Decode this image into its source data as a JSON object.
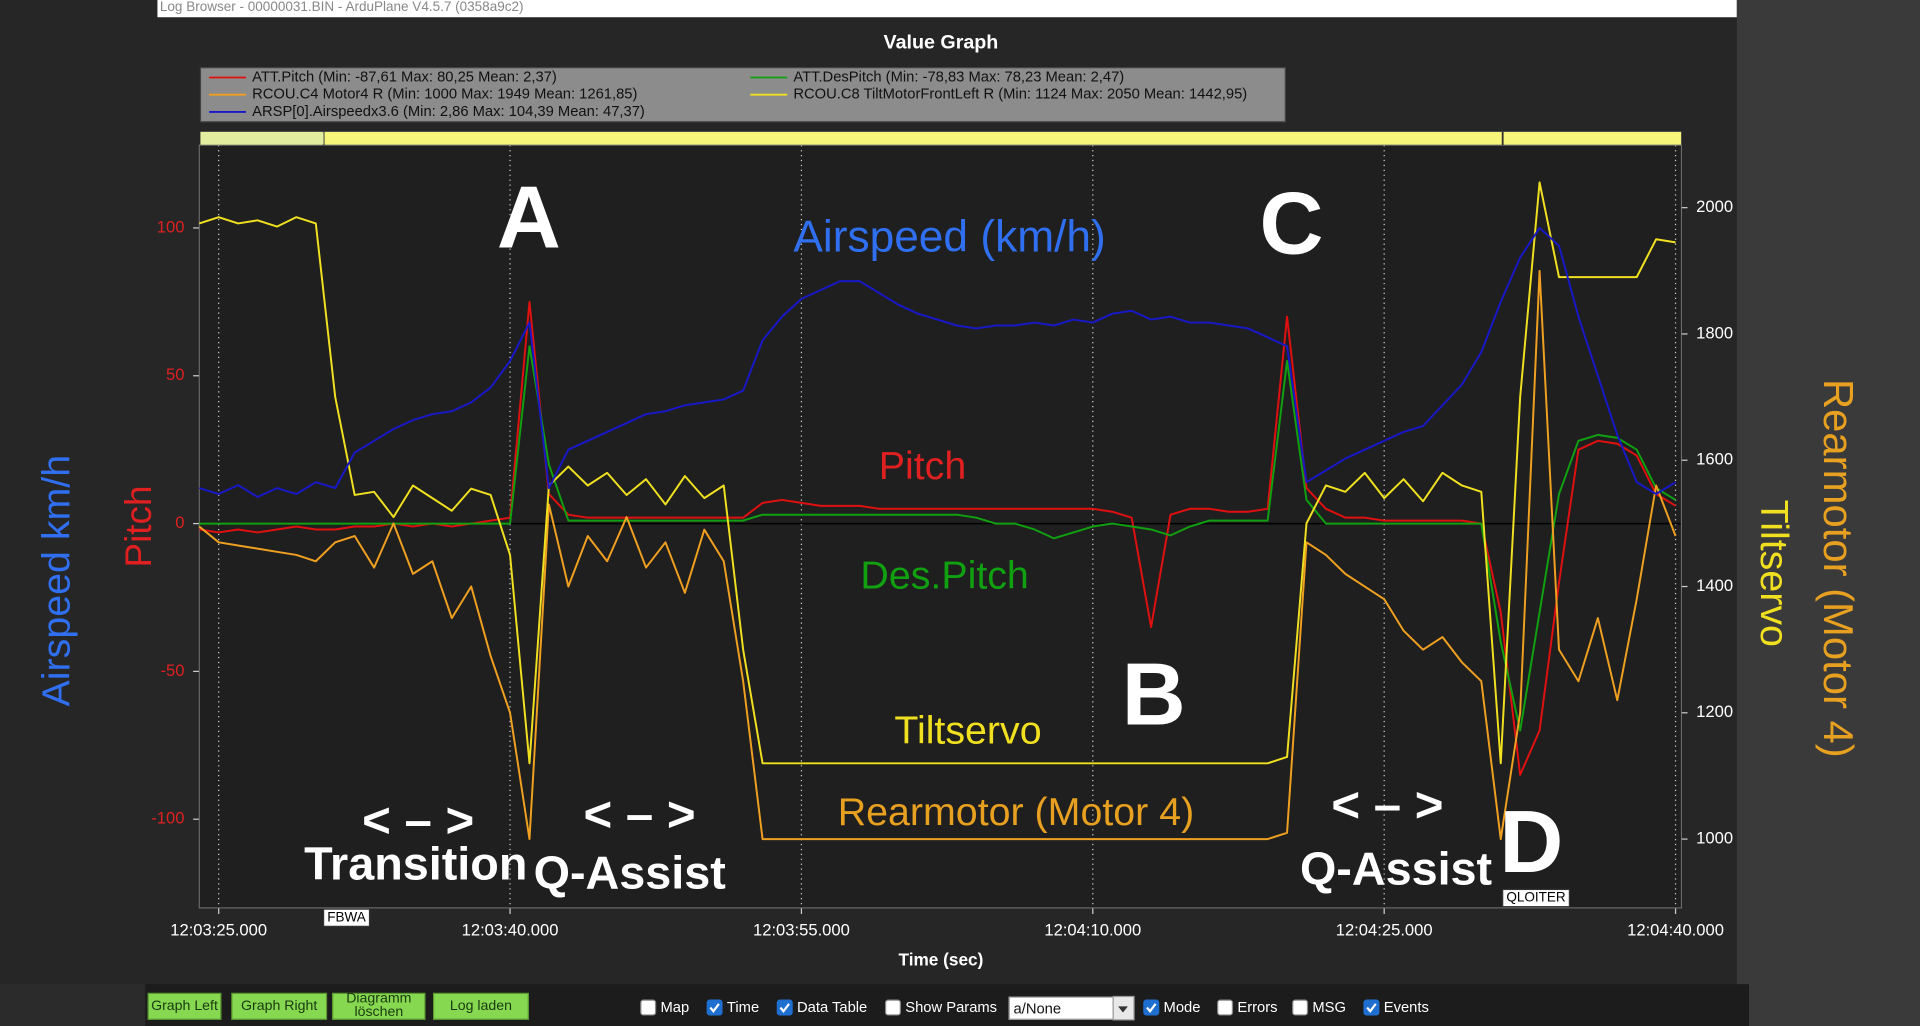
{
  "window": {
    "title": "Log Browser - 00000031.BIN - ArduPlane V4.5.7 (0358a9c2)"
  },
  "chart_data": {
    "type": "line",
    "title": "Value Graph",
    "xlabel": "Time (sec)",
    "ylabel": [
      "Airspeed km/h",
      "Pitch"
    ],
    "y2label": [
      "Rearmotor (Motor 4)",
      "Tiltservo"
    ],
    "grid": "x",
    "xlim": [
      43404,
      43480.3
    ],
    "xticks": [
      {
        "value": 43405,
        "label": "12:03:25.000"
      },
      {
        "value": 43420,
        "label": "12:03:40.000"
      },
      {
        "value": 43435,
        "label": "12:03:55.000"
      },
      {
        "value": 43450,
        "label": "12:04:10.000"
      },
      {
        "value": 43465,
        "label": "12:04:25.000"
      },
      {
        "value": 43480,
        "label": "12:04:40.000"
      }
    ],
    "ylim": [
      -130,
      128
    ],
    "yticks": [
      -100,
      -50,
      0,
      50,
      100
    ],
    "y2lim": [
      891,
      2099
    ],
    "y2ticks": [
      1000,
      1200,
      1400,
      1600,
      1800,
      2000
    ],
    "modes": [
      {
        "label": "FBWA",
        "x": 43410.4
      },
      {
        "label": "QLOITER",
        "x": 43471.1
      }
    ],
    "x": [
      43404,
      43405,
      43406,
      43407,
      43408,
      43409,
      43410,
      43411,
      43412,
      43413,
      43414,
      43415,
      43416,
      43417,
      43418,
      43419,
      43420,
      43421,
      43422,
      43423,
      43424,
      43425,
      43426,
      43427,
      43428,
      43429,
      43430,
      43431,
      43432,
      43433,
      43434,
      43435,
      43436,
      43437,
      43438,
      43439,
      43440,
      43441,
      43442,
      43443,
      43444,
      43445,
      43446,
      43447,
      43448,
      43449,
      43450,
      43451,
      43452,
      43453,
      43454,
      43455,
      43456,
      43457,
      43458,
      43459,
      43460,
      43461,
      43462,
      43463,
      43464,
      43465,
      43466,
      43467,
      43468,
      43469,
      43470,
      43471,
      43472,
      43473,
      43474,
      43475,
      43476,
      43477,
      43478,
      43479,
      43480
    ],
    "series": [
      {
        "name": "ATT.Pitch  (Min: -87,61 Max: 80,25 Mean: 2,37)",
        "color": "#e01010",
        "axis": "y",
        "values": [
          -2,
          -3,
          -2,
          -3,
          -2,
          -1,
          -2,
          -2,
          -1,
          -1,
          0,
          -1,
          0,
          -1,
          0,
          1,
          2,
          75,
          10,
          3,
          2,
          2,
          2,
          2,
          2,
          2,
          2,
          2,
          2,
          7,
          8,
          7,
          6,
          6,
          6,
          5,
          5,
          5,
          5,
          5,
          5,
          5,
          5,
          5,
          5,
          5,
          5,
          4,
          2,
          -35,
          3,
          5,
          5,
          4,
          4,
          5,
          70,
          12,
          5,
          2,
          2,
          1,
          1,
          1,
          1,
          1,
          0,
          -30,
          -85,
          -70,
          -20,
          25,
          28,
          27,
          23,
          10,
          6
        ]
      },
      {
        "name": "ATT.DesPitch  (Min: -78,83 Max: 78,23 Mean: 2,47)",
        "color": "#10a010",
        "axis": "y",
        "values": [
          0,
          0,
          0,
          0,
          0,
          0,
          0,
          0,
          0,
          0,
          0,
          0,
          0,
          0,
          0,
          0,
          0,
          60,
          20,
          1,
          1,
          1,
          1,
          1,
          1,
          1,
          1,
          1,
          1,
          3,
          3,
          3,
          3,
          3,
          3,
          3,
          3,
          3,
          3,
          3,
          2,
          0,
          0,
          -2,
          -5,
          -3,
          -1,
          0,
          -1,
          -2,
          -4,
          -1,
          1,
          1,
          1,
          1,
          55,
          8,
          0,
          0,
          0,
          0,
          0,
          0,
          0,
          0,
          0,
          -40,
          -70,
          -30,
          10,
          28,
          30,
          29,
          25,
          12,
          8
        ]
      },
      {
        "name": "RCOU.C4 Motor4 R (Min: 1000 Max: 1949 Mean: 1261,85)",
        "color": "#f0a020",
        "axis": "y2",
        "values": [
          1495,
          1470,
          1465,
          1460,
          1455,
          1450,
          1440,
          1470,
          1480,
          1430,
          1500,
          1420,
          1440,
          1350,
          1400,
          1290,
          1200,
          1000,
          1530,
          1400,
          1480,
          1440,
          1510,
          1430,
          1470,
          1390,
          1490,
          1440,
          1250,
          1000,
          1000,
          1000,
          1000,
          1000,
          1000,
          1000,
          1000,
          1000,
          1000,
          1000,
          1000,
          1000,
          1000,
          1000,
          1000,
          1000,
          1000,
          1000,
          1000,
          1000,
          1000,
          1000,
          1000,
          1000,
          1000,
          1000,
          1010,
          1470,
          1450,
          1420,
          1400,
          1380,
          1330,
          1300,
          1320,
          1280,
          1250,
          1000,
          1200,
          1900,
          1300,
          1250,
          1350,
          1220,
          1380,
          1560,
          1480
        ]
      },
      {
        "name": "RCOU.C8 TiltMotorFrontLeft R (Min: 1124 Max: 2050 Mean: 1442,95)",
        "color": "#f0e020",
        "axis": "y2",
        "values": [
          1975,
          1985,
          1975,
          1980,
          1970,
          1985,
          1975,
          1700,
          1545,
          1550,
          1510,
          1560,
          1540,
          1520,
          1555,
          1545,
          1450,
          1120,
          1560,
          1590,
          1560,
          1580,
          1545,
          1570,
          1530,
          1575,
          1540,
          1560,
          1300,
          1120,
          1120,
          1120,
          1120,
          1120,
          1120,
          1120,
          1120,
          1120,
          1120,
          1120,
          1120,
          1120,
          1120,
          1120,
          1120,
          1120,
          1120,
          1120,
          1120,
          1120,
          1120,
          1120,
          1120,
          1120,
          1120,
          1120,
          1130,
          1500,
          1560,
          1550,
          1580,
          1540,
          1570,
          1535,
          1580,
          1560,
          1550,
          1120,
          1700,
          2040,
          1890,
          1890,
          1890,
          1890,
          1890,
          1950,
          1945
        ]
      },
      {
        "name": "ARSP[0].Airspeedx3.6  (Min: 2,86 Max: 104,39 Mean: 47,37)",
        "color": "#1818c8",
        "axis": "y",
        "values": [
          12,
          10,
          13,
          9,
          12,
          10,
          14,
          12,
          24,
          28,
          32,
          35,
          37,
          38,
          41,
          46,
          55,
          68,
          12,
          25,
          28,
          31,
          34,
          37,
          38,
          40,
          41,
          42,
          45,
          62,
          70,
          76,
          79,
          82,
          82,
          78,
          74,
          71,
          69,
          67,
          66,
          67,
          67,
          68,
          67,
          69,
          68,
          71,
          72,
          69,
          70,
          68,
          68,
          67,
          66,
          63,
          60,
          14,
          18,
          22,
          25,
          28,
          31,
          33,
          40,
          47,
          58,
          75,
          90,
          100,
          94,
          70,
          50,
          30,
          14,
          10,
          14
        ]
      }
    ],
    "annotations": [
      "A",
      "Airspeed (km/h)",
      "C",
      "Pitch",
      "Des.Pitch",
      "B",
      "Tiltservo",
      "Rearmotor (Motor 4)",
      "<  –  >",
      "<  –  >",
      "<  –  >",
      "Transition",
      "Q-Assist",
      "Q-Assist",
      "D"
    ]
  },
  "toolbar": {
    "buttons": [
      "Graph Left",
      "Graph Right",
      "Diagramm löschen",
      "Log laden"
    ],
    "checkboxes": [
      {
        "label": "Map",
        "checked": false
      },
      {
        "label": "Time",
        "checked": true
      },
      {
        "label": "Data Table",
        "checked": true
      },
      {
        "label": "Show Params",
        "checked": false
      },
      {
        "label": "Mode",
        "checked": true
      },
      {
        "label": "Errors",
        "checked": false
      },
      {
        "label": "MSG",
        "checked": false
      },
      {
        "label": "Events",
        "checked": true
      }
    ],
    "select": "a/None"
  }
}
